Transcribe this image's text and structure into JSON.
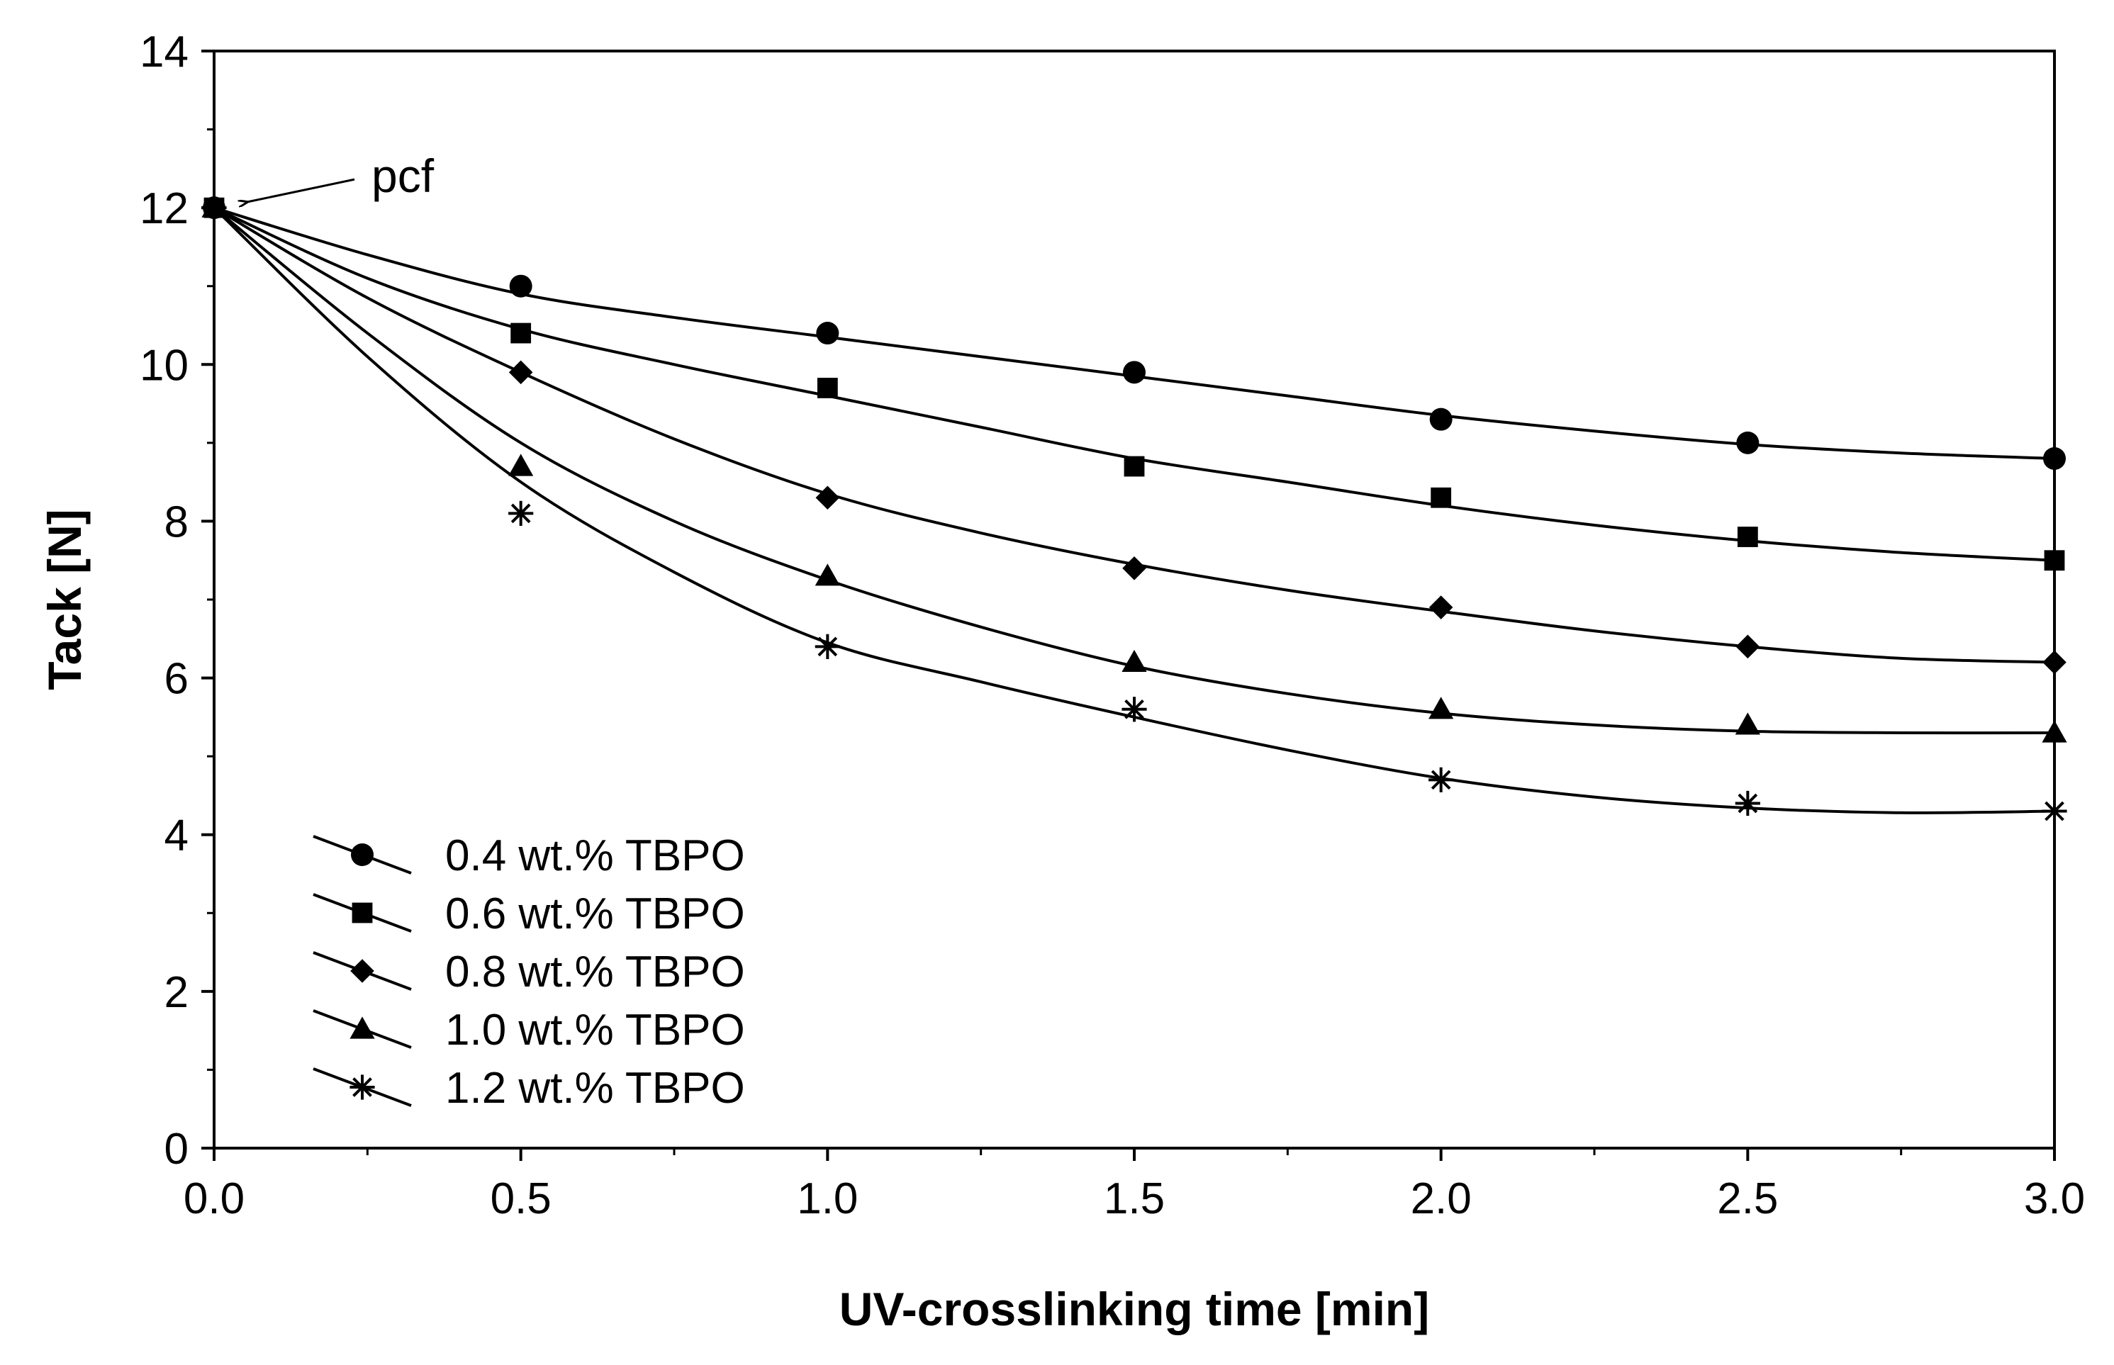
{
  "chart_data": {
    "type": "scatter",
    "title": "",
    "xlabel": "UV-crosslinking time [min]",
    "ylabel": "Tack [N]",
    "xlim": [
      0,
      3
    ],
    "ylim": [
      0,
      14
    ],
    "x_ticks": [
      0,
      0.5,
      1.0,
      1.5,
      2.0,
      2.5,
      3.0
    ],
    "x_tick_labels": [
      "0.0",
      "0.5",
      "1.0",
      "1.5",
      "2.0",
      "2.5",
      "3.0"
    ],
    "y_ticks": [
      0,
      2,
      4,
      6,
      8,
      10,
      12,
      14
    ],
    "y_tick_labels": [
      "0",
      "2",
      "4",
      "6",
      "8",
      "10",
      "12",
      "14"
    ],
    "grid": false,
    "legend_position": "bottom-left",
    "x": [
      0,
      0.5,
      1.0,
      1.5,
      2.0,
      2.5,
      3.0
    ],
    "series": [
      {
        "name": "0.4 wt.% TBPO",
        "marker": "circle",
        "values": [
          12,
          11.0,
          10.4,
          9.9,
          9.3,
          9.0,
          8.8
        ],
        "fit": [
          [
            0,
            12
          ],
          [
            0.25,
            11.4
          ],
          [
            0.5,
            10.9
          ],
          [
            0.75,
            10.6
          ],
          [
            1.0,
            10.35
          ],
          [
            1.25,
            10.1
          ],
          [
            1.5,
            9.85
          ],
          [
            1.75,
            9.6
          ],
          [
            2.0,
            9.35
          ],
          [
            2.25,
            9.15
          ],
          [
            2.5,
            8.98
          ],
          [
            2.75,
            8.87
          ],
          [
            3.0,
            8.8
          ]
        ]
      },
      {
        "name": "0.6 wt.% TBPO",
        "marker": "square",
        "values": [
          12,
          10.4,
          9.7,
          8.7,
          8.3,
          7.8,
          7.5
        ],
        "fit": [
          [
            0,
            12
          ],
          [
            0.25,
            11.1
          ],
          [
            0.5,
            10.45
          ],
          [
            0.75,
            10.0
          ],
          [
            1.0,
            9.6
          ],
          [
            1.25,
            9.2
          ],
          [
            1.5,
            8.8
          ],
          [
            1.75,
            8.5
          ],
          [
            2.0,
            8.2
          ],
          [
            2.25,
            7.95
          ],
          [
            2.5,
            7.75
          ],
          [
            2.75,
            7.6
          ],
          [
            3.0,
            7.5
          ]
        ]
      },
      {
        "name": "0.8 wt.% TBPO",
        "marker": "diamond",
        "values": [
          12,
          9.9,
          8.3,
          7.4,
          6.9,
          6.4,
          6.2
        ],
        "fit": [
          [
            0,
            12
          ],
          [
            0.25,
            10.85
          ],
          [
            0.5,
            9.9
          ],
          [
            0.75,
            9.05
          ],
          [
            1.0,
            8.35
          ],
          [
            1.25,
            7.85
          ],
          [
            1.5,
            7.45
          ],
          [
            1.75,
            7.12
          ],
          [
            2.0,
            6.85
          ],
          [
            2.25,
            6.6
          ],
          [
            2.5,
            6.4
          ],
          [
            2.75,
            6.25
          ],
          [
            3.0,
            6.2
          ]
        ]
      },
      {
        "name": "1.0 wt.% TBPO",
        "marker": "triangle",
        "values": [
          12,
          8.7,
          7.3,
          6.2,
          5.6,
          5.4,
          5.3
        ],
        "fit": [
          [
            0,
            12
          ],
          [
            0.25,
            10.4
          ],
          [
            0.5,
            9.0
          ],
          [
            0.75,
            8.0
          ],
          [
            1.0,
            7.25
          ],
          [
            1.25,
            6.65
          ],
          [
            1.5,
            6.15
          ],
          [
            1.75,
            5.8
          ],
          [
            2.0,
            5.55
          ],
          [
            2.25,
            5.4
          ],
          [
            2.5,
            5.32
          ],
          [
            2.75,
            5.3
          ],
          [
            3.0,
            5.3
          ]
        ]
      },
      {
        "name": "1.2 wt.% TBPO",
        "marker": "asterisk",
        "values": [
          12,
          8.1,
          6.4,
          5.6,
          4.7,
          4.4,
          4.3
        ],
        "fit": [
          [
            0,
            12
          ],
          [
            0.25,
            10.1
          ],
          [
            0.5,
            8.5
          ],
          [
            0.75,
            7.35
          ],
          [
            1.0,
            6.45
          ],
          [
            1.25,
            5.95
          ],
          [
            1.5,
            5.5
          ],
          [
            1.75,
            5.08
          ],
          [
            2.0,
            4.72
          ],
          [
            2.25,
            4.48
          ],
          [
            2.5,
            4.34
          ],
          [
            2.75,
            4.28
          ],
          [
            3.0,
            4.3
          ]
        ]
      }
    ],
    "annotations": [
      {
        "text": "pcf",
        "x": 0,
        "y": 12
      }
    ]
  }
}
